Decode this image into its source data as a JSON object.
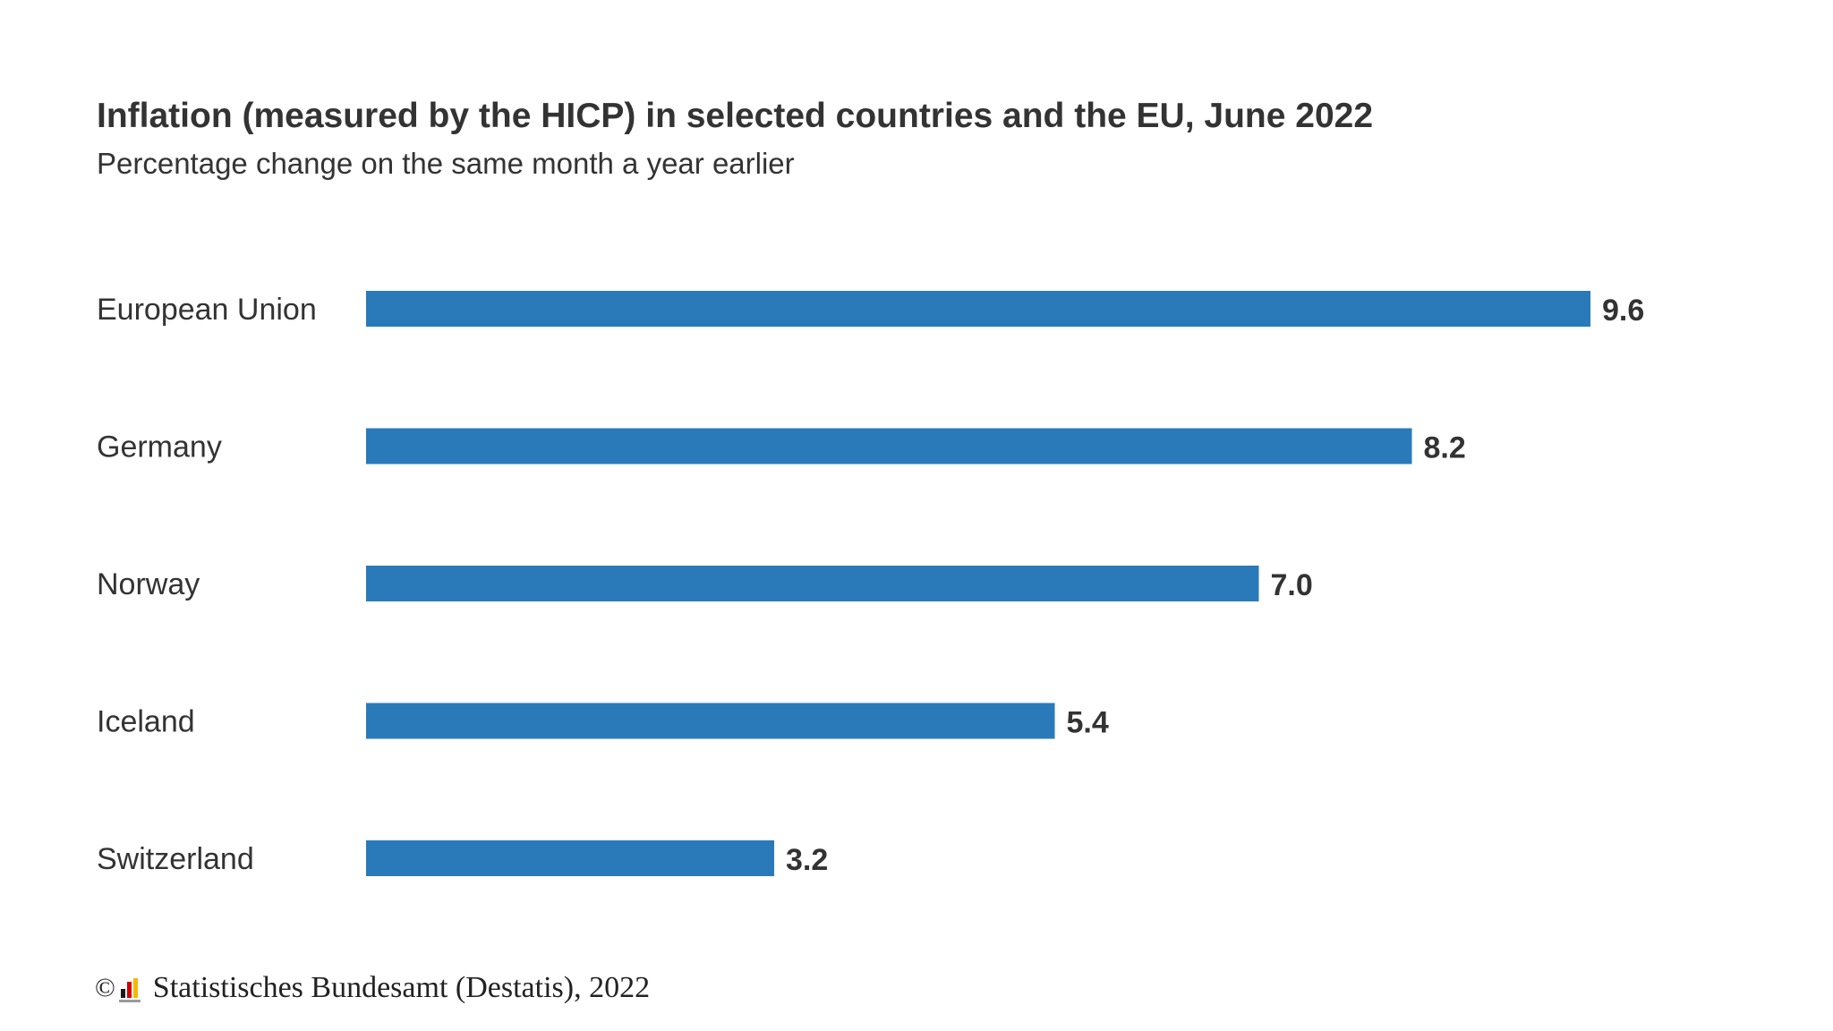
{
  "chart_data": {
    "type": "bar",
    "orientation": "horizontal",
    "title": "Inflation (measured by the HICP) in selected countries and the EU, June 2022",
    "subtitle": "Percentage change on the same month a year earlier",
    "categories": [
      "European Union",
      "Germany",
      "Norway",
      "Iceland",
      "Switzerland"
    ],
    "values": [
      9.6,
      8.2,
      7.0,
      5.4,
      3.2
    ],
    "value_labels": [
      "9.6",
      "8.2",
      "7.0",
      "5.4",
      "3.2"
    ],
    "xlabel": "",
    "ylabel": "",
    "xlim": [
      0,
      9.6
    ],
    "grid": false,
    "legend": "none",
    "bar_color": "#2a7ab9"
  },
  "source": {
    "copyright_symbol": "©",
    "text": "Statistisches Bundesamt (Destatis), 2022",
    "logo_name": "destatis-logo"
  }
}
